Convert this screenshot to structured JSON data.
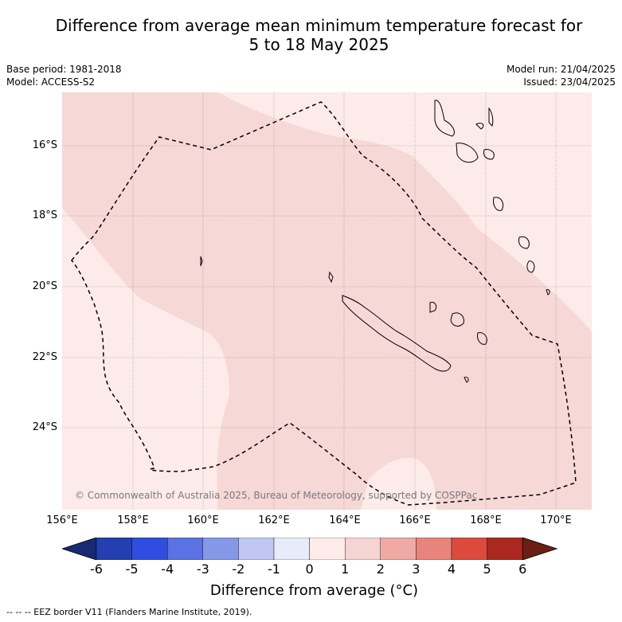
{
  "title_line1": "Difference from average mean minimum temperature forecast for",
  "title_line2": "5 to 18 May 2025",
  "base_period": "Base period: 1981-2018",
  "model": "Model: ACCESS-S2",
  "model_run": "Model run: 21/04/2025",
  "issued": "Issued: 23/04/2025",
  "copyright": "© Commonwealth of Australia 2025, Bureau of Meteorology, supported by COSPPac",
  "lat_labels": [
    "16°S",
    "18°S",
    "20°S",
    "22°S",
    "24°S"
  ],
  "lon_labels": [
    "156°E",
    "158°E",
    "160°E",
    "162°E",
    "164°E",
    "166°E",
    "168°E",
    "170°E"
  ],
  "colorbar": {
    "title": "Difference from average (°C)",
    "ticks": [
      "-6",
      "-5",
      "-4",
      "-3",
      "-2",
      "-1",
      "0",
      "1",
      "2",
      "3",
      "4",
      "5",
      "6"
    ],
    "colors": [
      "#172a73",
      "#243fb0",
      "#2f4ee0",
      "#5a72e2",
      "#8598e8",
      "#c0c7f3",
      "#e8ebfa",
      "#fdebe9",
      "#f6d4d2",
      "#efaaa6",
      "#e8847c",
      "#dc4a3e",
      "#ab2820",
      "#6b1e16"
    ]
  },
  "legend_footer": "--  --  -- EEZ border V11 (Flanders Marine Institute, 2019).",
  "map_colors": {
    "land_outline": "#000000",
    "anomaly_0_to_1": "#fdebe9",
    "anomaly_1_to_2": "#f6d8d6",
    "eez_border": "#000000"
  }
}
